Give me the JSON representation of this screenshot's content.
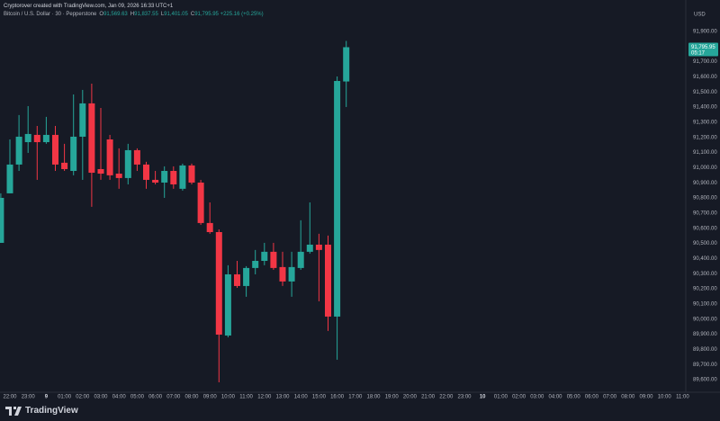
{
  "header": {
    "caption": "Cryptorover created with TradingView.com, Jan 09, 2026 16:33 UTC+1",
    "symbol": "Bitcoin / U.S. Dollar · 30 · Pepperstone",
    "ohlc_legend": [
      {
        "key": "O",
        "label": "91,569.63"
      },
      {
        "key": "H",
        "label": "91,837.55"
      },
      {
        "key": "L",
        "label": "91,401.05"
      },
      {
        "key": "C",
        "label": "91,795.95"
      }
    ],
    "change_label": "+225.16 (+0.25%)"
  },
  "footer": {
    "brand": "TradingView"
  },
  "chart_data": {
    "type": "candlestick",
    "currency": "USD",
    "up_color": "#26a69a",
    "down_color": "#f23645",
    "grid": false,
    "last_price_label": "91,795.95",
    "countdown": "05:17",
    "categories": [
      null,
      "22:00",
      null,
      "23:00",
      null,
      "9",
      null,
      "01:00",
      null,
      "02:00",
      null,
      "03:00",
      null,
      "04:00",
      null,
      "05:00",
      null,
      "06:00",
      null,
      "07:00",
      null,
      "08:00",
      null,
      "09:00",
      null,
      "10:00",
      null,
      "11:00",
      null,
      "12:00",
      null,
      "13:00",
      null,
      "14:00",
      null,
      "15:00",
      null,
      "16:00",
      null,
      "17:00",
      null,
      "18:00",
      null,
      "19:00",
      null,
      "20:00",
      null,
      "21:00",
      null,
      "22:00",
      null,
      "23:00",
      null,
      "10",
      null,
      "01:00",
      null,
      "02:00",
      null,
      "03:00",
      null,
      "04:00",
      null,
      "05:00",
      null,
      "06:00",
      null,
      "07:00",
      null,
      "08:00",
      null,
      "09:00",
      null,
      "10:00",
      null,
      "11:00"
    ],
    "open": [
      90504,
      90831,
      91021,
      91169,
      91217,
      91169,
      91217,
      91033,
      90979,
      91205,
      91425,
      90991,
      91187,
      90961,
      90932,
      91116,
      91021,
      90920,
      90902,
      90979,
      90861,
      91015,
      90902,
      90635,
      90575,
      89892,
      90296,
      90219,
      90338,
      90385,
      90445,
      90344,
      90249,
      90338,
      90445,
      90492,
      90492,
      90017,
      91569.63,
      null,
      null,
      null,
      null,
      null,
      null,
      null,
      null,
      null,
      null,
      null,
      null,
      null,
      null,
      null,
      null,
      null,
      null,
      null,
      null,
      null,
      null,
      null,
      null,
      null,
      null,
      null,
      null,
      null,
      null,
      null,
      null,
      null,
      null,
      null,
      null,
      null
    ],
    "high": [
      90831,
      91187,
      91348,
      91407,
      91276,
      91336,
      91276,
      91158,
      91484,
      91514,
      91555,
      91395,
      91217,
      91128,
      91158,
      91128,
      91039,
      90979,
      91009,
      91009,
      91027,
      91027,
      90920,
      90771,
      90593,
      90356,
      90385,
      90350,
      90457,
      90504,
      90504,
      90445,
      90445,
      90653,
      90771,
      90564,
      90552,
      91603,
      91837.55,
      null,
      null,
      null,
      null,
      null,
      null,
      null,
      null,
      null,
      null,
      null,
      null,
      null,
      null,
      null,
      null,
      null,
      null,
      null,
      null,
      null,
      null,
      null,
      null,
      null,
      null,
      null,
      null,
      null,
      null,
      null,
      null,
      null,
      null,
      null,
      null,
      null
    ],
    "low": [
      90504,
      90831,
      90979,
      91098,
      90920,
      91158,
      90979,
      90979,
      90950,
      90920,
      90742,
      90920,
      90920,
      90861,
      90890,
      90979,
      90861,
      90890,
      90801,
      90861,
      90849,
      90890,
      90623,
      90564,
      89583,
      89880,
      90207,
      90148,
      90296,
      90356,
      90326,
      90219,
      90148,
      90326,
      90433,
      90118,
      89922,
      89732,
      91401.05,
      null,
      null,
      null,
      null,
      null,
      null,
      null,
      null,
      null,
      null,
      null,
      null,
      null,
      null,
      null,
      null,
      null,
      null,
      null,
      null,
      null,
      null,
      null,
      null,
      null,
      null,
      null,
      null,
      null,
      null,
      null,
      null,
      null,
      null,
      null,
      null,
      null
    ],
    "close": [
      90801,
      91021,
      91205,
      91223,
      91169,
      91217,
      91021,
      90991,
      91205,
      91425,
      90967,
      90961,
      90950,
      90932,
      91116,
      91021,
      90920,
      90902,
      90979,
      90890,
      91015,
      90902,
      90635,
      90575,
      89898,
      90296,
      90219,
      90338,
      90385,
      90445,
      90338,
      90249,
      90344,
      90445,
      90492,
      90457,
      90017,
      91573,
      91795.95,
      null,
      null,
      null,
      null,
      null,
      null,
      null,
      null,
      null,
      null,
      null,
      null,
      null,
      null,
      null,
      null,
      null,
      null,
      null,
      null,
      null,
      null,
      null,
      null,
      null,
      null,
      null,
      null,
      null,
      null,
      null,
      null,
      null,
      null,
      null,
      null,
      null
    ],
    "ylim": [
      89520,
      91980
    ],
    "yticks": [
      {
        "value": 89600,
        "label": "89,600.00"
      },
      {
        "value": 89700,
        "label": "89,700.00"
      },
      {
        "value": 89800,
        "label": "89,800.00"
      },
      {
        "value": 89900,
        "label": "89,900.00"
      },
      {
        "value": 90000,
        "label": "90,000.00"
      },
      {
        "value": 90100,
        "label": "90,100.00"
      },
      {
        "value": 90200,
        "label": "90,200.00"
      },
      {
        "value": 90300,
        "label": "90,300.00"
      },
      {
        "value": 90400,
        "label": "90,400.00"
      },
      {
        "value": 90500,
        "label": "90,500.00"
      },
      {
        "value": 90600,
        "label": "90,600.00"
      },
      {
        "value": 90700,
        "label": "90,700.00"
      },
      {
        "value": 90800,
        "label": "90,800.00"
      },
      {
        "value": 90900,
        "label": "90,900.00"
      },
      {
        "value": 91000,
        "label": "91,000.00"
      },
      {
        "value": 91100,
        "label": "91,100.00"
      },
      {
        "value": 91200,
        "label": "91,200.00"
      },
      {
        "value": 91300,
        "label": "91,300.00"
      },
      {
        "value": 91400,
        "label": "91,400.00"
      },
      {
        "value": 91500,
        "label": "91,500.00"
      },
      {
        "value": 91600,
        "label": "91,600.00"
      },
      {
        "value": 91700,
        "label": "91,700.00"
      },
      {
        "value": 91800,
        "label": "91,800.00"
      },
      {
        "value": 91900,
        "label": "91,900.00"
      }
    ]
  }
}
